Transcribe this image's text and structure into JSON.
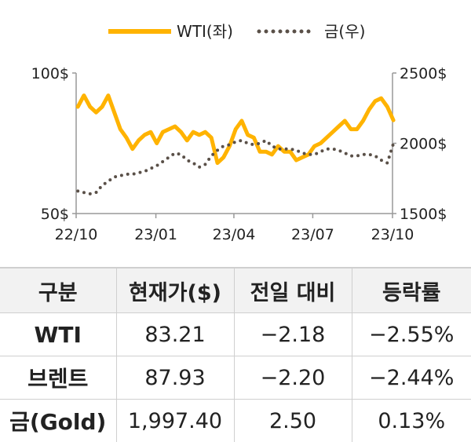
{
  "chart_data": {
    "type": "line",
    "legend": {
      "placement": "top-center",
      "entries": [
        "WTI(좌)",
        "금(우)"
      ]
    },
    "x_ticks": [
      "22/10",
      "23/01",
      "23/04",
      "23/07",
      "23/10"
    ],
    "y_left": {
      "range": [
        50,
        100
      ],
      "ticks": [
        "100$",
        "50$"
      ]
    },
    "y_right": {
      "range": [
        1500,
        2500
      ],
      "ticks": [
        "2500$",
        "2000$",
        "1500$"
      ]
    },
    "colors": {
      "wti": "#ffb300",
      "gold": "#5a5048",
      "axis": "#999999"
    },
    "grid": false,
    "series": [
      {
        "name": "WTI(좌)",
        "axis": "left",
        "style": "solid",
        "x": [
          "2022-10-03",
          "2022-10-10",
          "2022-10-17",
          "2022-10-24",
          "2022-10-31",
          "2022-11-07",
          "2022-11-14",
          "2022-11-21",
          "2022-11-28",
          "2022-12-05",
          "2022-12-12",
          "2022-12-19",
          "2022-12-26",
          "2023-01-02",
          "2023-01-09",
          "2023-01-16",
          "2023-01-23",
          "2023-01-30",
          "2023-02-06",
          "2023-02-13",
          "2023-02-20",
          "2023-02-27",
          "2023-03-06",
          "2023-03-13",
          "2023-03-20",
          "2023-03-27",
          "2023-04-03",
          "2023-04-10",
          "2023-04-17",
          "2023-04-24",
          "2023-05-01",
          "2023-05-08",
          "2023-05-15",
          "2023-05-22",
          "2023-05-29",
          "2023-06-05",
          "2023-06-12",
          "2023-06-19",
          "2023-06-26",
          "2023-07-03",
          "2023-07-10",
          "2023-07-17",
          "2023-07-24",
          "2023-07-31",
          "2023-08-07",
          "2023-08-14",
          "2023-08-21",
          "2023-08-28",
          "2023-09-04",
          "2023-09-11",
          "2023-09-18",
          "2023-09-25",
          "2023-10-02"
        ],
        "values": [
          88,
          92,
          88,
          86,
          88,
          92,
          86,
          80,
          77,
          73,
          76,
          78,
          79,
          75,
          79,
          80,
          81,
          79,
          76,
          79,
          78,
          79,
          77,
          68,
          70,
          74,
          80,
          83,
          78,
          77,
          72,
          72,
          71,
          74,
          72,
          72,
          69,
          70,
          71,
          74,
          75,
          77,
          79,
          81,
          83,
          80,
          80,
          83,
          87,
          90,
          91,
          88,
          83.21
        ]
      },
      {
        "name": "금(우)",
        "axis": "right",
        "style": "dotted",
        "x": [
          "2022-10-03",
          "2022-10-10",
          "2022-10-17",
          "2022-10-24",
          "2022-10-31",
          "2022-11-07",
          "2022-11-14",
          "2022-11-21",
          "2022-11-28",
          "2022-12-05",
          "2022-12-12",
          "2022-12-19",
          "2022-12-26",
          "2023-01-02",
          "2023-01-09",
          "2023-01-16",
          "2023-01-23",
          "2023-01-30",
          "2023-02-06",
          "2023-02-13",
          "2023-02-20",
          "2023-02-27",
          "2023-03-06",
          "2023-03-13",
          "2023-03-20",
          "2023-03-27",
          "2023-04-03",
          "2023-04-10",
          "2023-04-17",
          "2023-04-24",
          "2023-05-01",
          "2023-05-08",
          "2023-05-15",
          "2023-05-22",
          "2023-05-29",
          "2023-06-05",
          "2023-06-12",
          "2023-06-19",
          "2023-06-26",
          "2023-07-03",
          "2023-07-10",
          "2023-07-17",
          "2023-07-24",
          "2023-07-31",
          "2023-08-07",
          "2023-08-14",
          "2023-08-21",
          "2023-08-28",
          "2023-09-04",
          "2023-09-11",
          "2023-09-18",
          "2023-09-25",
          "2023-10-02"
        ],
        "values": [
          1660,
          1650,
          1640,
          1650,
          1700,
          1730,
          1760,
          1770,
          1780,
          1780,
          1790,
          1800,
          1820,
          1840,
          1870,
          1900,
          1930,
          1920,
          1880,
          1860,
          1830,
          1850,
          1910,
          1950,
          1980,
          1990,
          2010,
          2020,
          2000,
          1990,
          2000,
          2020,
          1980,
          1960,
          1960,
          1960,
          1950,
          1930,
          1920,
          1920,
          1940,
          1960,
          1960,
          1950,
          1930,
          1910,
          1910,
          1920,
          1920,
          1910,
          1880,
          1860,
          1997.4
        ]
      }
    ]
  },
  "table": {
    "headers": [
      "구분",
      "현재가($)",
      "전일 대비",
      "등락률"
    ],
    "rows": [
      [
        "WTI",
        "83.21",
        "−2.18",
        "−2.55%"
      ],
      [
        "브렌트",
        "87.93",
        "−2.20",
        "−2.44%"
      ],
      [
        "금(Gold)",
        "1,997.40",
        "2.50",
        "0.13%"
      ]
    ]
  }
}
